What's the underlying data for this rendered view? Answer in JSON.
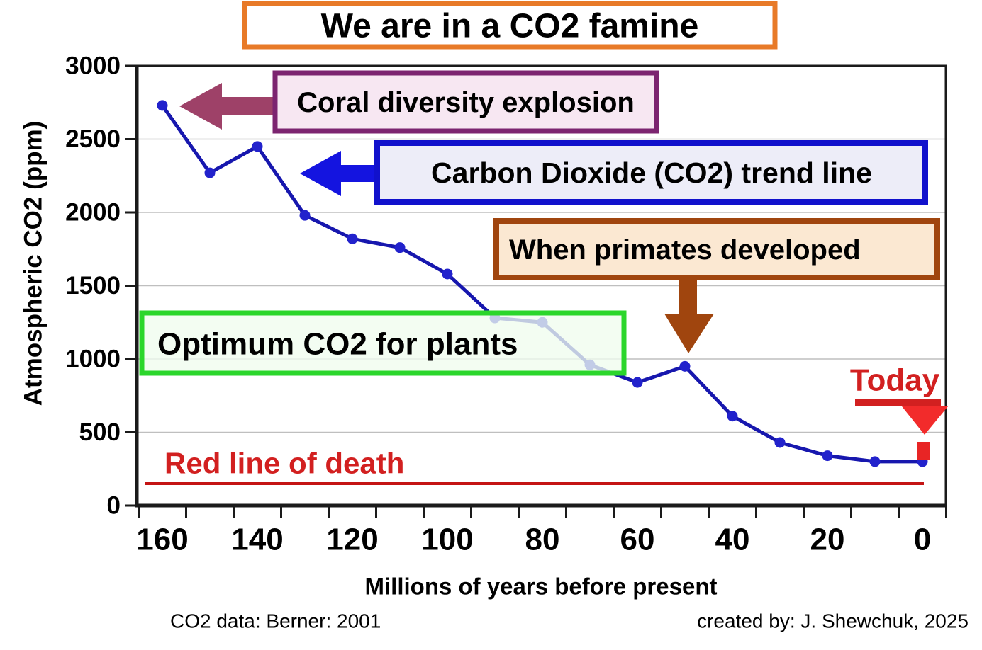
{
  "title": "We are in a CO2 famine",
  "annotations": {
    "coral": "Coral diversity explosion",
    "trend": "Carbon Dioxide (CO2) trend line",
    "primates": "When primates developed",
    "optimum": "Optimum CO2 for plants",
    "today": "Today",
    "death": "Red line of death"
  },
  "footer": {
    "left": "CO2 data: Berner: 2001",
    "right": "created by: J. Shewchuk, 2025"
  },
  "colors": {
    "title_border": "#e87a28",
    "coral_border": "#7c2470",
    "coral_fill": "#f7e7f2",
    "coral_arrow": "#9e4168",
    "blue_border": "#1111cc",
    "blue_fill": "#ededf8",
    "blue_arrow": "#1414e0",
    "brown_border": "#a0450e",
    "brown_fill": "#fbe8d2",
    "brown_arrow": "#a0450e",
    "green_border": "#2bd62b",
    "green_fill": "rgba(240,252,238,0.78)",
    "red_label": "#d22020",
    "red_triangle": "#f22b2b",
    "red_stub": "#e82525",
    "death_line": "#c41414",
    "trend_line": "#1717ae",
    "marker": "#2222cc",
    "grid": "#bfbfbf",
    "axis": "#1a1a1a",
    "text": "#000000"
  },
  "chart_data": {
    "type": "line",
    "x": [
      160,
      150,
      140,
      130,
      120,
      110,
      100,
      90,
      80,
      70,
      60,
      50,
      40,
      30,
      20,
      10,
      0
    ],
    "values": [
      2730,
      2270,
      2450,
      1980,
      1820,
      1760,
      1580,
      1280,
      1250,
      960,
      840,
      950,
      610,
      430,
      340,
      300,
      300
    ],
    "series": [
      {
        "name": "Carbon Dioxide (CO2) trend line",
        "values": [
          2730,
          2270,
          2450,
          1980,
          1820,
          1760,
          1580,
          1280,
          1250,
          960,
          840,
          950,
          610,
          430,
          340,
          300,
          300
        ]
      }
    ],
    "x_tick_labels": [
      "160",
      "140",
      "120",
      "100",
      "80",
      "60",
      "40",
      "20",
      "0"
    ],
    "y_ticks": [
      0,
      500,
      1000,
      1500,
      2000,
      2500,
      3000
    ],
    "title": "We are in a CO2 famine",
    "xlabel": "Millions of years before present",
    "ylabel": "Atmospheric CO2 (ppm)",
    "ylim": [
      0,
      3000
    ],
    "x_axis_reversed": true,
    "grid": "horizontal-gray",
    "legend": "none",
    "red_line_of_death_value": 150,
    "today_value": 300,
    "today_x": 0
  }
}
